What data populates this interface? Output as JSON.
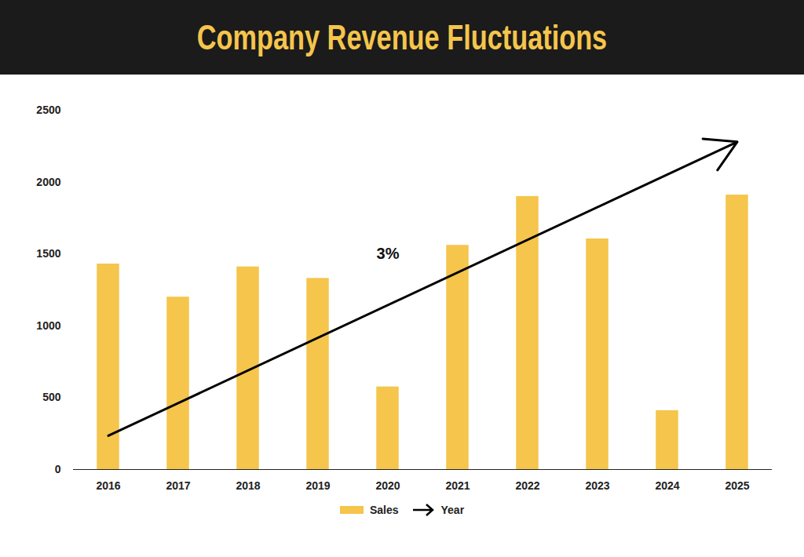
{
  "chart_data": {
    "type": "bar",
    "title": "Company Revenue Fluctuations",
    "categories": [
      "2016",
      "2017",
      "2018",
      "2019",
      "2020",
      "2021",
      "2022",
      "2023",
      "2024",
      "2025"
    ],
    "series": [
      {
        "name": "Sales",
        "type": "bar",
        "color": "#f5c54c",
        "values": [
          1430,
          1200,
          1410,
          1330,
          575,
          1560,
          1900,
          1605,
          410,
          1910
        ]
      },
      {
        "name": "Year",
        "type": "arrow",
        "color": "#000000",
        "values": [
          235,
          null,
          null,
          null,
          null,
          null,
          null,
          null,
          null,
          2280
        ]
      }
    ],
    "annotations": [
      {
        "text": "3%",
        "x": "2020",
        "y": 1500
      }
    ],
    "ylim": [
      0,
      2500
    ],
    "yticks": [
      0,
      500,
      1000,
      1500,
      2000,
      2500
    ],
    "grid": false,
    "legend": "bottom"
  }
}
